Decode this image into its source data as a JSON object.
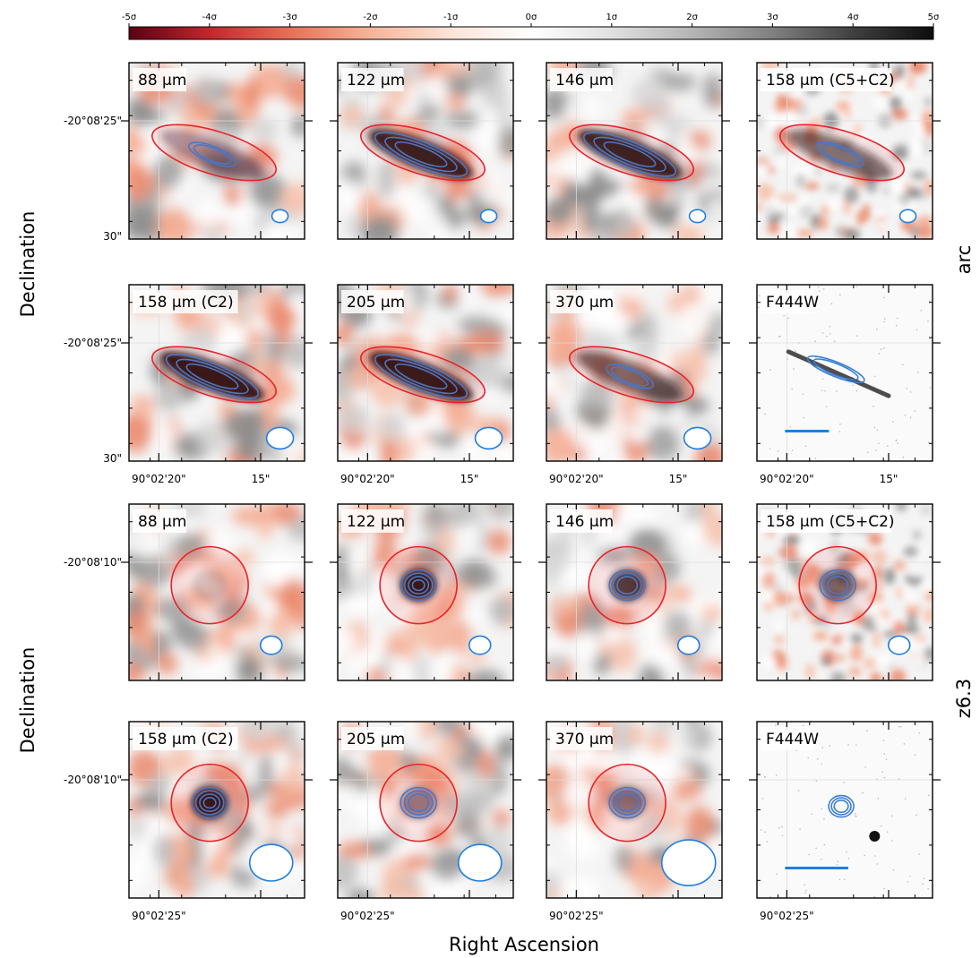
{
  "colorbar": {
    "ticks": [
      "-5σ",
      "-4σ",
      "-3σ",
      "-2σ",
      "-1σ",
      "0σ",
      "1σ",
      "2σ",
      "3σ",
      "4σ",
      "5σ"
    ],
    "colors": [
      "#5c0014",
      "#c1272d",
      "#e86f57",
      "#f6b49a",
      "#fde3d6",
      "#ffffff",
      "#e0e0e0",
      "#b5b5b5",
      "#808080",
      "#404040",
      "#0d0d0d"
    ]
  },
  "axis_titles": {
    "x": "Right Ascension",
    "y_top": "Declination",
    "y_bottom": "Declination"
  },
  "row_groups": {
    "arc": "arc",
    "z63": "z6.3"
  },
  "dec_ticks": {
    "arc_upper": "-20°08'25\"",
    "arc_lower": "30\"",
    "z63": "-20°08'10\""
  },
  "ra_ticks": {
    "arc_major": "90°02'20\"",
    "arc_minor": "15\"",
    "z63_major": "90°02'25\""
  },
  "panels": {
    "arc": [
      [
        "88 μm",
        "122 μm",
        "146 μm",
        "158 μm (C5+C2)"
      ],
      [
        "158 μm (C2)",
        "205 μm",
        "370 μm",
        "F444W"
      ]
    ],
    "z63": [
      [
        "88 μm",
        "122 μm",
        "146 μm",
        "158 μm (C5+C2)"
      ],
      [
        "158 μm (C2)",
        "205 μm",
        "370 μm",
        "F444W"
      ]
    ]
  },
  "style_colors": {
    "aperture": "#e8232a",
    "contour": "#3a7fd5",
    "beam": "#1f7fe0"
  }
}
